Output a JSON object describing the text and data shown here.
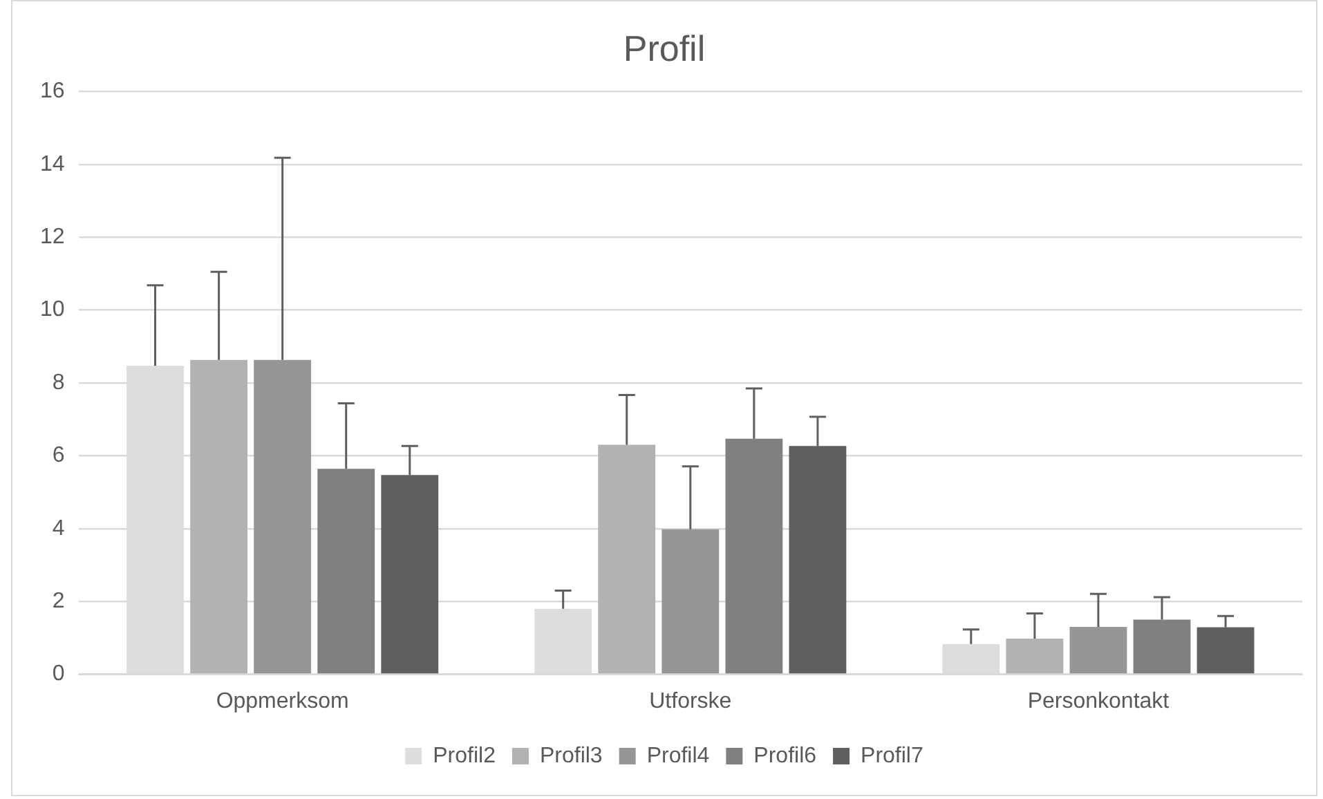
{
  "chart_data": {
    "type": "bar",
    "title": "Profil",
    "categories": [
      "Oppmerksom",
      "Utforske",
      "Personkontakt"
    ],
    "series": [
      {
        "name": "Profil2",
        "color": "#dddddd",
        "values": [
          8.47,
          1.8,
          0.83
        ],
        "errors": [
          [
            8.47,
            10.68
          ],
          [
            1.8,
            2.3
          ],
          [
            0.83,
            1.23
          ]
        ]
      },
      {
        "name": "Profil3",
        "color": "#b2b2b2",
        "values": [
          8.63,
          6.3,
          0.98
        ],
        "errors": [
          [
            8.63,
            11.05
          ],
          [
            6.3,
            7.67
          ],
          [
            0.98,
            1.67
          ]
        ]
      },
      {
        "name": "Profil4",
        "color": "#969696",
        "values": [
          8.63,
          3.98,
          1.3
        ],
        "errors": [
          [
            8.63,
            14.18
          ],
          [
            3.98,
            5.71
          ],
          [
            1.3,
            2.21
          ]
        ]
      },
      {
        "name": "Profil6",
        "color": "#808080",
        "values": [
          5.64,
          6.47,
          1.5
        ],
        "errors": [
          [
            5.64,
            7.44
          ],
          [
            6.47,
            7.85
          ],
          [
            1.5,
            2.12
          ]
        ]
      },
      {
        "name": "Profil7",
        "color": "#5f5f5f",
        "values": [
          5.47,
          6.27,
          1.29
        ],
        "errors": [
          [
            5.47,
            6.27
          ],
          [
            6.27,
            7.07
          ],
          [
            1.29,
            1.6
          ]
        ]
      }
    ],
    "ylim": [
      0,
      16
    ],
    "yticks": [
      0,
      2,
      4,
      6,
      8,
      10,
      12,
      14,
      16
    ],
    "grid": "y",
    "legend": "bottom"
  }
}
